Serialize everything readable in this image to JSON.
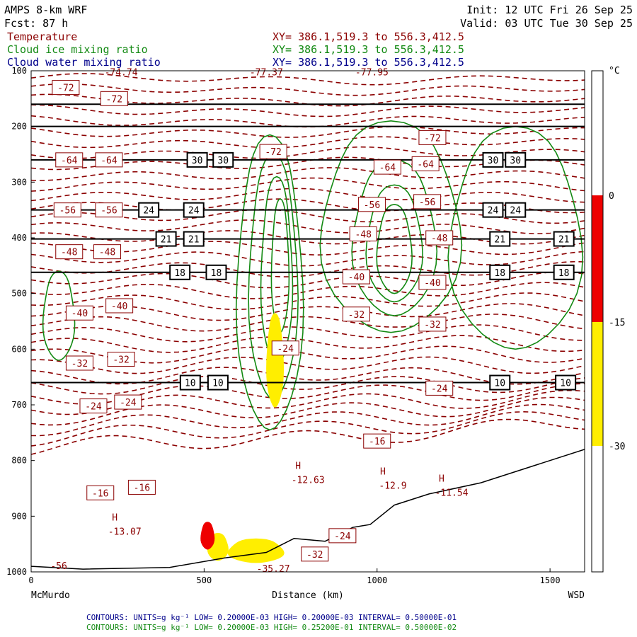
{
  "header": {
    "model": "AMPS 8-km WRF",
    "forecast": "Fcst:    87 h",
    "init": "Init: 12 UTC Fri 26 Sep 25",
    "valid": "Valid: 03 UTC Tue 30 Sep 25",
    "fields": [
      {
        "name": "Temperature",
        "xy": "XY= 386.1,519.3 to 556.3,412.5",
        "color": "#8b0000"
      },
      {
        "name": "Cloud ice mixing ratio",
        "xy": "XY= 386.1,519.3 to 556.3,412.5",
        "color": "#138a13"
      },
      {
        "name": "Cloud water mixing ratio",
        "xy": "XY= 386.1,519.3 to 556.3,412.5",
        "color": "#00008b"
      }
    ]
  },
  "chart_data": {
    "type": "cross-section contour",
    "xlabel": "Distance (km)",
    "x_range": [
      0,
      1600
    ],
    "x_ticks": [
      0,
      500,
      1000,
      1500
    ],
    "x_endpoints": {
      "left": "McMurdo",
      "right": "WSD"
    },
    "ylabel": "",
    "y_range": [
      100,
      1000
    ],
    "y_ticks": [
      100,
      200,
      300,
      400,
      500,
      600,
      700,
      800,
      900,
      1000
    ],
    "colorbar": {
      "unit": "°C",
      "ticks": [
        "0",
        "-15",
        "-30"
      ],
      "bands": [
        {
          "from": 0,
          "to": -15,
          "color": "#ee0000"
        },
        {
          "from": -15,
          "to": -30,
          "color": "#ffee00"
        }
      ]
    },
    "black_lines": [
      {
        "p": 160,
        "labels": []
      },
      {
        "p": 200,
        "labels": []
      },
      {
        "p": 260,
        "labels": [
          "30",
          "30",
          "30",
          "30"
        ]
      },
      {
        "p": 350,
        "labels": [
          "24",
          "24",
          "24",
          "24"
        ]
      },
      {
        "p": 402,
        "labels": [
          "21",
          "21",
          "21",
          "21"
        ]
      },
      {
        "p": 462,
        "labels": [
          "18",
          "18",
          "18",
          "18"
        ]
      },
      {
        "p": 660,
        "labels": [
          "10",
          "10",
          "10",
          "10"
        ]
      }
    ],
    "temperature_labels": [
      {
        "x": 100,
        "p": 130,
        "t": "-72"
      },
      {
        "x": 240,
        "p": 150,
        "t": "-72"
      },
      {
        "x": 1160,
        "p": 220,
        "t": "-72"
      },
      {
        "x": 700,
        "p": 245,
        "t": "-72"
      },
      {
        "x": 110,
        "p": 260,
        "t": "-64"
      },
      {
        "x": 225,
        "p": 260,
        "t": "-64"
      },
      {
        "x": 1030,
        "p": 273,
        "t": "-64"
      },
      {
        "x": 1140,
        "p": 267,
        "t": "-64"
      },
      {
        "x": 105,
        "p": 350,
        "t": "-56"
      },
      {
        "x": 225,
        "p": 350,
        "t": "-56"
      },
      {
        "x": 985,
        "p": 340,
        "t": "-56"
      },
      {
        "x": 1145,
        "p": 335,
        "t": "-56"
      },
      {
        "x": 1180,
        "p": 400,
        "t": "-48"
      },
      {
        "x": 110,
        "p": 425,
        "t": "-48"
      },
      {
        "x": 220,
        "p": 425,
        "t": "-48"
      },
      {
        "x": 960,
        "p": 393,
        "t": "-48"
      },
      {
        "x": 940,
        "p": 470,
        "t": "-40"
      },
      {
        "x": 1160,
        "p": 480,
        "t": "-40"
      },
      {
        "x": 140,
        "p": 535,
        "t": "-40"
      },
      {
        "x": 255,
        "p": 522,
        "t": "-40"
      },
      {
        "x": 940,
        "p": 537,
        "t": "-32"
      },
      {
        "x": 1160,
        "p": 555,
        "t": "-32"
      },
      {
        "x": 140,
        "p": 625,
        "t": "-32"
      },
      {
        "x": 260,
        "p": 618,
        "t": "-32"
      },
      {
        "x": 735,
        "p": 598,
        "t": "-24"
      },
      {
        "x": 1180,
        "p": 670,
        "t": "-24"
      },
      {
        "x": 180,
        "p": 702,
        "t": "-24"
      },
      {
        "x": 280,
        "p": 695,
        "t": "-24"
      },
      {
        "x": 1000,
        "p": 765,
        "t": "-16"
      },
      {
        "x": 200,
        "p": 858,
        "t": "-16"
      },
      {
        "x": 320,
        "p": 848,
        "t": "-16"
      },
      {
        "x": 900,
        "p": 935,
        "t": "-24"
      },
      {
        "x": 820,
        "p": 968,
        "t": "-32"
      }
    ],
    "top_values": [
      {
        "x": 260,
        "p": 103,
        "t": "-74.74"
      },
      {
        "x": 680,
        "p": 103,
        "t": "-77.37"
      },
      {
        "x": 985,
        "p": 103,
        "t": "-77.95"
      }
    ],
    "highs": [
      {
        "x": 780,
        "p": 815,
        "t": "-12.63"
      },
      {
        "x": 1025,
        "p": 825,
        "t": "-12.9"
      },
      {
        "x": 1195,
        "p": 838,
        "t": "-11.54"
      },
      {
        "x": 250,
        "p": 908,
        "t": "-13.07"
      }
    ],
    "low_values": [
      {
        "x": 700,
        "p": 995,
        "t": "-35.27"
      },
      {
        "x": 80,
        "p": 990,
        "t": "-56"
      }
    ]
  },
  "footer": {
    "lines": [
      {
        "text": "CONTOURS:  UNITS=g kg⁻¹  LOW= 0.20000E-03  HIGH= 0.20000E-03  INTERVAL=  0.50000E-01",
        "color": "#00008b"
      },
      {
        "text": "CONTOURS:  UNITS=g kg⁻¹  LOW= 0.20000E-03  HIGH= 0.25200E-01  INTERVAL=  0.50000E-02",
        "color": "#138a13"
      }
    ]
  }
}
